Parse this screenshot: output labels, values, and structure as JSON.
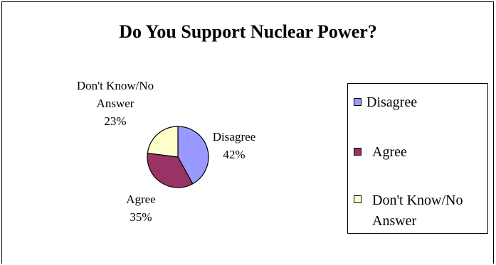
{
  "chart_data": {
    "type": "pie",
    "title": "Do You Support Nuclear Power?",
    "slices": [
      {
        "label": "Disagree",
        "value": 42,
        "value_label": "42%",
        "color": "#9999ff"
      },
      {
        "label": "Agree",
        "value": 35,
        "value_label": "35%",
        "color": "#993366"
      },
      {
        "label": "Don't Know/No Answer",
        "value": 23,
        "value_label": "23%",
        "color": "#ffffcc"
      }
    ],
    "legend": {
      "position": "right",
      "entries": [
        "Disagree",
        "Agree",
        "Don't Know/No Answer"
      ]
    },
    "start_angle_deg": 0,
    "direction": "clockwise"
  }
}
